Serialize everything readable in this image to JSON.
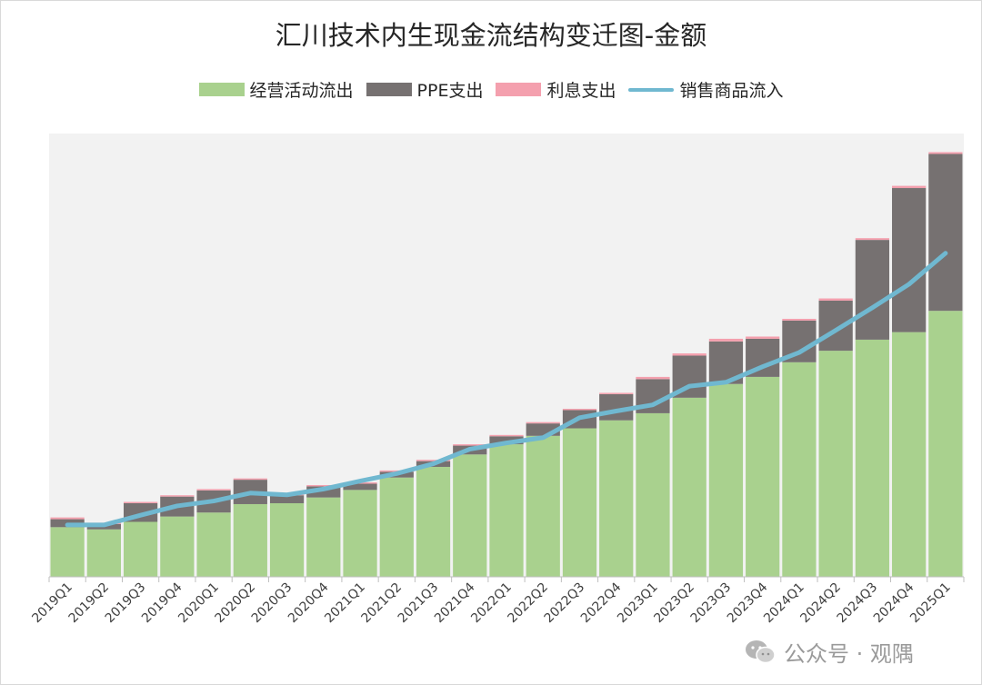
{
  "chart_data": {
    "type": "bar",
    "stacked": true,
    "title": "汇川技术内生现金流结构变迁图-金额",
    "xlabel": "",
    "ylabel": "",
    "categories": [
      "2019Q1",
      "2019Q2",
      "2019Q3",
      "2019Q4",
      "2020Q1",
      "2020Q2",
      "2020Q3",
      "2020Q4",
      "2021Q1",
      "2021Q2",
      "2021Q3",
      "2021Q4",
      "2022Q1",
      "2022Q2",
      "2022Q3",
      "2022Q4",
      "2023Q1",
      "2023Q2",
      "2023Q3",
      "2023Q4",
      "2024Q1",
      "2024Q2",
      "2024Q3",
      "2024Q4",
      "2025Q1"
    ],
    "ylim": [
      0,
      100
    ],
    "grid": false,
    "legend_position": "top",
    "series": [
      {
        "name": "经营活动流出",
        "kind": "bar",
        "color": "#a9d18e",
        "values": [
          11.2,
          10.7,
          12.4,
          13.6,
          14.5,
          16.4,
          16.6,
          17.9,
          19.6,
          22.4,
          24.8,
          27.6,
          29.9,
          31.8,
          33.5,
          35.3,
          36.9,
          40.4,
          43.5,
          45.1,
          48.4,
          51.0,
          53.5,
          55.2,
          60.0
        ]
      },
      {
        "name": "PPE支出",
        "kind": "bar",
        "color": "#767171",
        "values": [
          1.8,
          1.2,
          4.2,
          4.5,
          5.0,
          5.5,
          1.8,
          2.5,
          1.4,
          1.3,
          1.3,
          2.0,
          1.8,
          2.8,
          4.1,
          5.9,
          7.7,
          9.5,
          9.6,
          8.6,
          9.4,
          11.3,
          22.5,
          32.5,
          35.4
        ]
      },
      {
        "name": "利息支出",
        "kind": "bar",
        "color": "#f4a0ae",
        "values": [
          0.4,
          0.3,
          0.3,
          0.3,
          0.3,
          0.3,
          0.3,
          0.3,
          0.3,
          0.3,
          0.3,
          0.3,
          0.3,
          0.3,
          0.3,
          0.3,
          0.5,
          0.5,
          0.6,
          0.5,
          0.4,
          0.5,
          0.4,
          0.5,
          0.4
        ]
      },
      {
        "name": "销售商品流入",
        "kind": "line",
        "color": "#70b8d0",
        "values": [
          11.7,
          11.7,
          13.9,
          16.0,
          17.1,
          18.9,
          18.5,
          19.8,
          21.6,
          23.3,
          25.5,
          28.8,
          30.2,
          31.4,
          35.9,
          37.4,
          38.8,
          43.0,
          43.9,
          47.4,
          50.6,
          55.6,
          60.7,
          66.0,
          73.0
        ]
      }
    ]
  },
  "watermark": {
    "icon": "wechat-icon",
    "text": "公众号 · 观隅"
  }
}
